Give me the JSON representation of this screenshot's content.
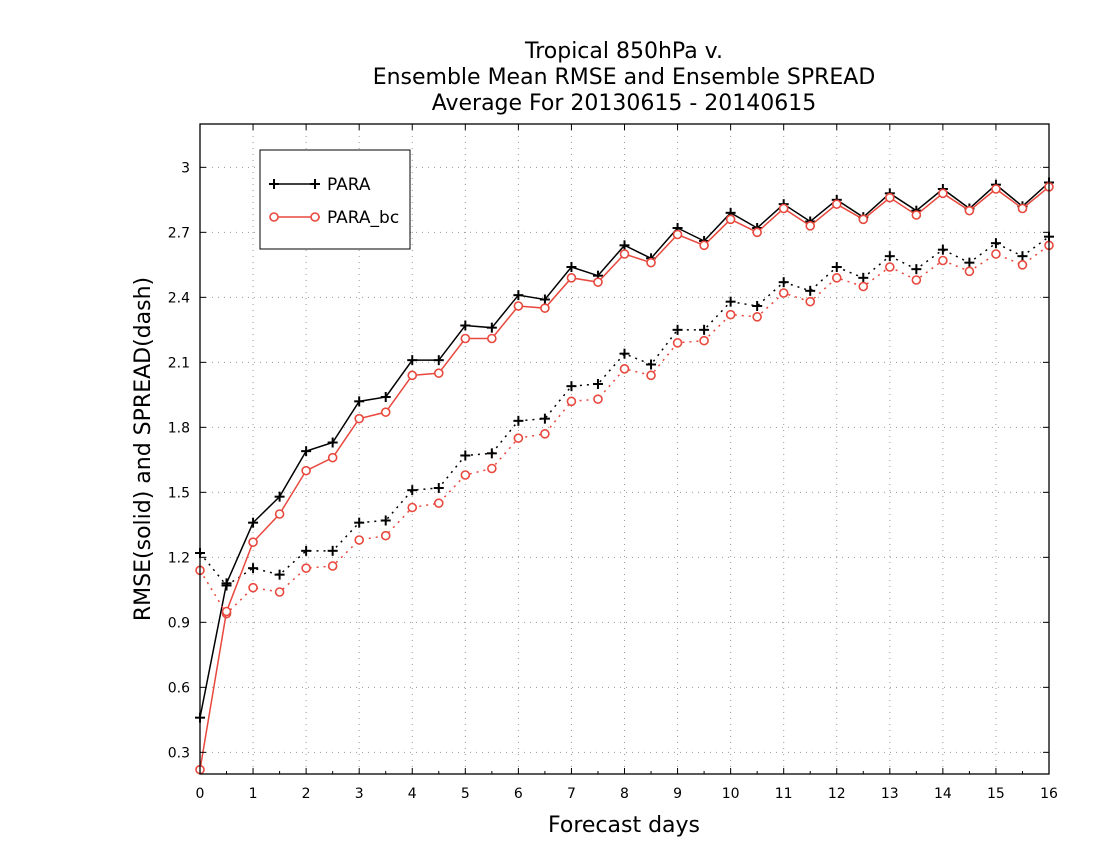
{
  "chart_data": {
    "type": "line",
    "title_lines": [
      "Tropical 850hPa v.",
      "Ensemble Mean RMSE and Ensemble SPREAD",
      "Average For 20130615 - 20140615"
    ],
    "xlabel": "Forecast days",
    "ylabel": "RMSE(solid) and SPREAD(dash)",
    "xlim": [
      0,
      16
    ],
    "ylim": [
      0.2,
      3.2
    ],
    "x_ticks": [
      "0",
      "1",
      "2",
      "3",
      "4",
      "5",
      "6",
      "7",
      "8",
      "9",
      "10",
      "11",
      "12",
      "13",
      "14",
      "15",
      "16"
    ],
    "y_ticks": [
      "0.3",
      "0.6",
      "0.9",
      "1.2",
      "1.5",
      "1.8",
      "2.1",
      "2.4",
      "2.7",
      "3"
    ],
    "grid": true,
    "legend_position": "top-left",
    "x": [
      0,
      0.5,
      1,
      1.5,
      2,
      2.5,
      3,
      3.5,
      4,
      4.5,
      5,
      5.5,
      6,
      6.5,
      7,
      7.5,
      8,
      8.5,
      9,
      9.5,
      10,
      10.5,
      11,
      11.5,
      12,
      12.5,
      13,
      13.5,
      14,
      14.5,
      15,
      15.5,
      16
    ],
    "series": [
      {
        "name": "PARA",
        "color": "#000000",
        "marker": "plus",
        "rmse": [
          0.46,
          1.08,
          1.36,
          1.48,
          1.69,
          1.73,
          1.92,
          1.94,
          2.11,
          2.11,
          2.27,
          2.26,
          2.41,
          2.39,
          2.54,
          2.5,
          2.64,
          2.58,
          2.72,
          2.66,
          2.79,
          2.72,
          2.83,
          2.75,
          2.85,
          2.77,
          2.88,
          2.8,
          2.9,
          2.81,
          2.92,
          2.82,
          2.93
        ],
        "spread": [
          1.22,
          1.07,
          1.15,
          1.12,
          1.23,
          1.23,
          1.36,
          1.37,
          1.51,
          1.52,
          1.67,
          1.68,
          1.83,
          1.84,
          1.99,
          2.0,
          2.14,
          2.09,
          2.25,
          2.25,
          2.38,
          2.36,
          2.47,
          2.43,
          2.54,
          2.49,
          2.59,
          2.53,
          2.62,
          2.56,
          2.65,
          2.59,
          2.68
        ]
      },
      {
        "name": "PARA_bc",
        "color": "#e8483d",
        "marker": "circle",
        "rmse": [
          0.22,
          0.95,
          1.27,
          1.4,
          1.6,
          1.66,
          1.84,
          1.87,
          2.04,
          2.05,
          2.21,
          2.21,
          2.36,
          2.35,
          2.49,
          2.47,
          2.6,
          2.56,
          2.69,
          2.64,
          2.76,
          2.7,
          2.81,
          2.73,
          2.83,
          2.76,
          2.86,
          2.78,
          2.88,
          2.8,
          2.9,
          2.81,
          2.91
        ],
        "spread": [
          1.14,
          0.94,
          1.06,
          1.04,
          1.15,
          1.16,
          1.28,
          1.3,
          1.43,
          1.45,
          1.58,
          1.61,
          1.75,
          1.77,
          1.92,
          1.93,
          2.07,
          2.04,
          2.19,
          2.2,
          2.32,
          2.31,
          2.42,
          2.38,
          2.49,
          2.45,
          2.54,
          2.48,
          2.57,
          2.52,
          2.6,
          2.55,
          2.64
        ]
      }
    ]
  }
}
